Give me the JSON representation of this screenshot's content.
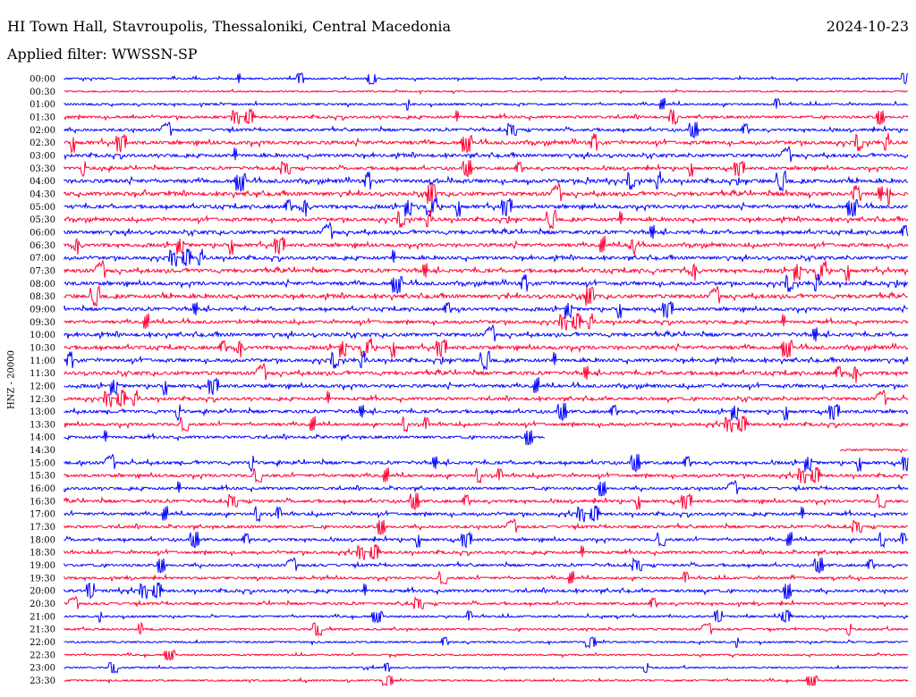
{
  "header": {
    "title": "HI Town Hall, Stavroupolis, Thessaloniki, Central Macedonia",
    "date": "2024-10-23",
    "filter": "Applied filter: WWSSN-SP"
  },
  "colors": {
    "even_trace": "#0000ff",
    "odd_trace": "#ff0033",
    "text": "#000000",
    "background": "#ffffff"
  },
  "chart_data": {
    "type": "line",
    "title": "HI Town Hall, Stavroupolis, Thessaloniki, Central Macedonia",
    "ylabel": "HNZ - 20000",
    "row_labels": [
      "00:00",
      "00:30",
      "01:00",
      "01:30",
      "02:00",
      "02:30",
      "03:00",
      "03:30",
      "04:00",
      "04:30",
      "05:00",
      "05:30",
      "06:00",
      "06:30",
      "07:00",
      "07:30",
      "08:00",
      "08:30",
      "09:00",
      "09:30",
      "10:00",
      "10:30",
      "11:00",
      "11:30",
      "12:00",
      "12:30",
      "13:00",
      "13:30",
      "14:00",
      "14:30",
      "15:00",
      "15:30",
      "16:00",
      "16:30",
      "17:00",
      "17:30",
      "18:00",
      "18:30",
      "19:00",
      "19:30",
      "20:00",
      "20:30",
      "21:00",
      "21:30",
      "22:00",
      "22:30",
      "23:00",
      "23:30"
    ],
    "activity": [
      0.25,
      0.15,
      0.35,
      0.5,
      0.55,
      0.8,
      0.7,
      0.6,
      0.85,
      0.9,
      0.8,
      0.75,
      0.8,
      0.75,
      0.7,
      0.85,
      0.8,
      0.85,
      0.7,
      0.65,
      0.8,
      0.8,
      0.75,
      0.8,
      0.7,
      0.65,
      0.65,
      0.6,
      0.55,
      0.3,
      0.65,
      0.6,
      0.55,
      0.6,
      0.6,
      0.55,
      0.55,
      0.55,
      0.5,
      0.45,
      0.6,
      0.45,
      0.3,
      0.35,
      0.25,
      0.2,
      0.2,
      0.2
    ],
    "trace_segments": {
      "14:00": [
        0,
        0.57
      ],
      "14:30": [
        0.92,
        1.0
      ]
    },
    "color_pattern": "alternating blue (even rows) / red (odd rows)",
    "grid": false
  }
}
